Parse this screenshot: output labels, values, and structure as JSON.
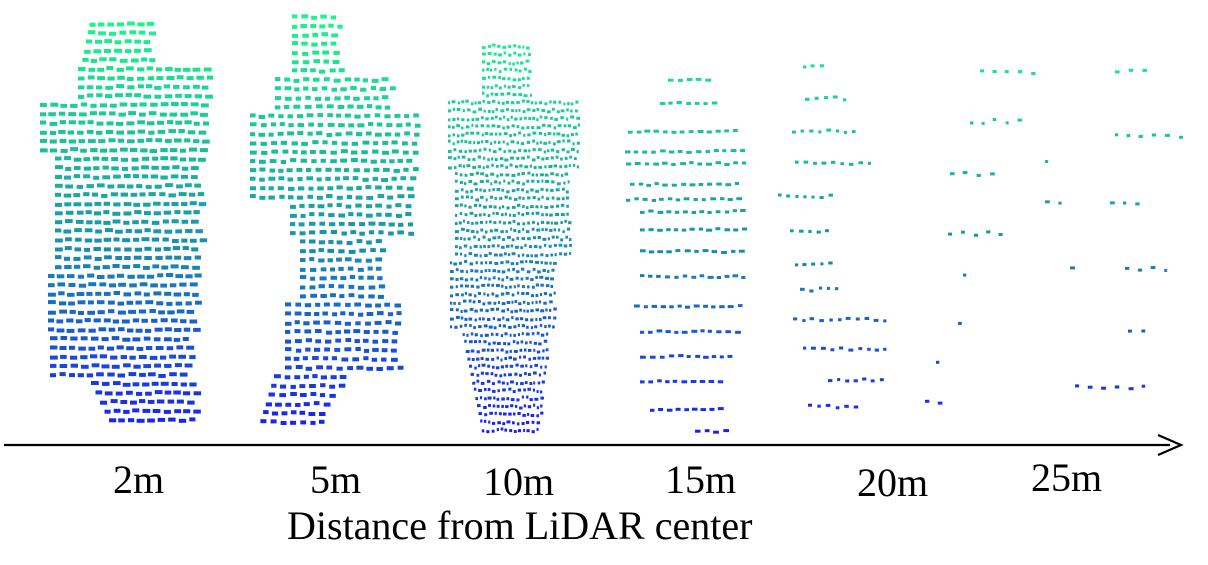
{
  "figure": {
    "axis_caption": "Distance from LiDAR center",
    "distance_labels": [
      "2m",
      "5m",
      "10m",
      "15m",
      "20m",
      "25m"
    ],
    "colors": {
      "top": "#1ef58a",
      "middle": "#1a9aa8",
      "bottom": "#1a1ef0",
      "axis": "#000000"
    }
  }
}
